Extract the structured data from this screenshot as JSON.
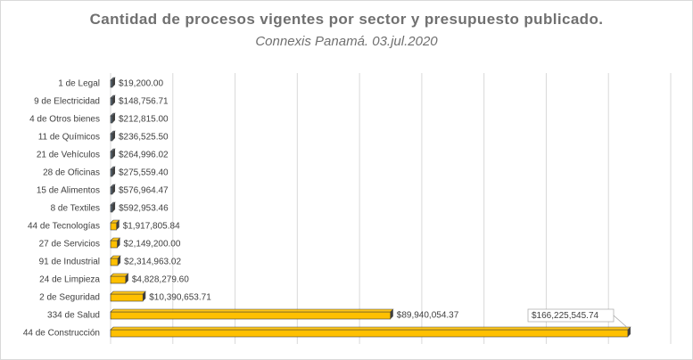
{
  "chart_data": {
    "type": "bar",
    "orientation": "horizontal",
    "title": "Cantidad  de procesos  vigentes por sector y presupuesto  publicado.",
    "subtitle": "Connexis Panamá. 03.jul.2020",
    "categories": [
      "1 de Legal",
      "9 de Electricidad",
      "4 de Otros bienes",
      "11 de Químicos",
      "21 de Vehículos",
      "28 de Oficinas",
      "15 de Alimentos",
      "8 de Textiles",
      "44 de Tecnologías",
      "27 de Servicios",
      "91 de Industrial",
      "24 de Limpieza",
      "2 de Seguridad",
      "334 de Salud",
      "44 de Construcción"
    ],
    "values": [
      19200.0,
      148756.71,
      212815.0,
      236525.5,
      264996.02,
      275559.4,
      576964.47,
      592953.46,
      1917805.84,
      2149200.0,
      2314963.02,
      4828279.6,
      10390653.71,
      89940054.37,
      166225545.74
    ],
    "value_labels": [
      "$19,200.00",
      "$148,756.71",
      "$212,815.00",
      "$236,525.50",
      "$264,996.02",
      "$275,559.40",
      "$576,964.47",
      "$592,953.46",
      "$1,917,805.84",
      "$2,149,200.00",
      "$2,314,963.02",
      "$4,828,279.60",
      "$10,390,653.71",
      "$89,940,054.37",
      "$166,225,545.74"
    ],
    "xlim": [
      0,
      180000000
    ],
    "grid": true,
    "legend": "none",
    "colors": {
      "bar_small": "#5b6b7a",
      "bar_large": "#ffc000",
      "bar_side": "#404040",
      "grid": "#d9d9d9",
      "label_box": "#a6a6a6"
    }
  }
}
